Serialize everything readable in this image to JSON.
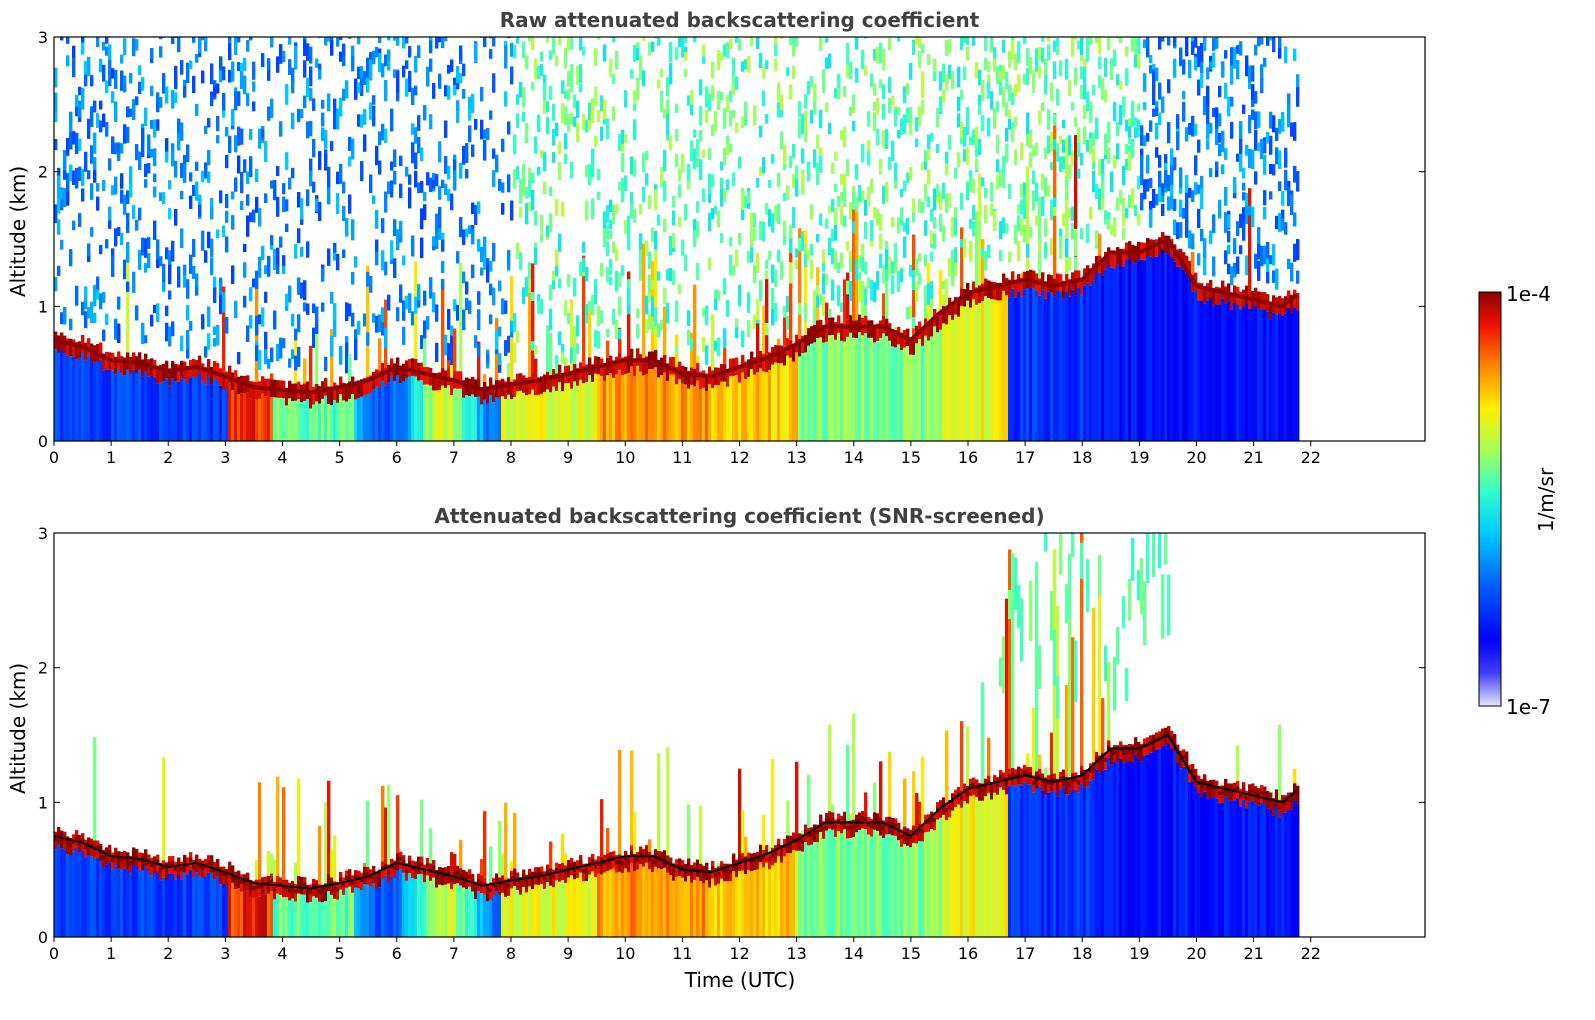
{
  "chart_data": [
    {
      "type": "heatmap",
      "title": "Raw attenuated backscattering coefficient",
      "xlabel": "",
      "ylabel": "Altitude (km)",
      "xlim": [
        0,
        24
      ],
      "ylim": [
        0,
        3
      ],
      "xticks": [
        "0",
        "1",
        "2",
        "3",
        "4",
        "5",
        "6",
        "7",
        "8",
        "9",
        "10",
        "11",
        "12",
        "13",
        "14",
        "15",
        "16",
        "17",
        "18",
        "19",
        "20",
        "21",
        "22"
      ],
      "yticks": [
        "0",
        "1",
        "2",
        "3"
      ],
      "data_end_time": 21.8,
      "screened": false,
      "layer_height_km": [
        [
          0,
          0.75
        ],
        [
          0.5,
          0.7
        ],
        [
          1,
          0.6
        ],
        [
          1.5,
          0.58
        ],
        [
          2,
          0.52
        ],
        [
          2.5,
          0.55
        ],
        [
          3,
          0.48
        ],
        [
          3.5,
          0.4
        ],
        [
          4,
          0.38
        ],
        [
          4.5,
          0.36
        ],
        [
          5,
          0.4
        ],
        [
          5.5,
          0.45
        ],
        [
          6,
          0.55
        ],
        [
          6.5,
          0.5
        ],
        [
          7,
          0.45
        ],
        [
          7.5,
          0.38
        ],
        [
          8,
          0.42
        ],
        [
          8.5,
          0.45
        ],
        [
          9,
          0.5
        ],
        [
          9.5,
          0.55
        ],
        [
          10,
          0.6
        ],
        [
          10.5,
          0.6
        ],
        [
          11,
          0.5
        ],
        [
          11.5,
          0.48
        ],
        [
          12,
          0.55
        ],
        [
          12.5,
          0.62
        ],
        [
          13,
          0.72
        ],
        [
          13.5,
          0.85
        ],
        [
          14,
          0.85
        ],
        [
          14.5,
          0.85
        ],
        [
          15,
          0.75
        ],
        [
          15.5,
          0.95
        ],
        [
          16,
          1.1
        ],
        [
          16.5,
          1.15
        ],
        [
          17,
          1.2
        ],
        [
          17.5,
          1.15
        ],
        [
          18,
          1.2
        ],
        [
          18.5,
          1.4
        ],
        [
          19,
          1.4
        ],
        [
          19.5,
          1.5
        ],
        [
          20,
          1.15
        ],
        [
          20.5,
          1.1
        ],
        [
          21,
          1.05
        ],
        [
          21.5,
          1.0
        ],
        [
          21.8,
          1.1
        ]
      ]
    },
    {
      "type": "heatmap",
      "title": "Attenuated backscattering coefficient (SNR-screened)",
      "xlabel": "Time (UTC)",
      "ylabel": "Altitude (km)",
      "xlim": [
        0,
        24
      ],
      "ylim": [
        0,
        3
      ],
      "xticks": [
        "0",
        "1",
        "2",
        "3",
        "4",
        "5",
        "6",
        "7",
        "8",
        "9",
        "10",
        "11",
        "12",
        "13",
        "14",
        "15",
        "16",
        "17",
        "18",
        "19",
        "20",
        "21",
        "22"
      ],
      "yticks": [
        "0",
        "1",
        "2",
        "3"
      ],
      "data_end_time": 21.8,
      "screened": true
    }
  ],
  "colorbar": {
    "label": "1/m/sr",
    "max_label": "1e-4",
    "min_label": "1e-7",
    "colormap": "jet"
  }
}
